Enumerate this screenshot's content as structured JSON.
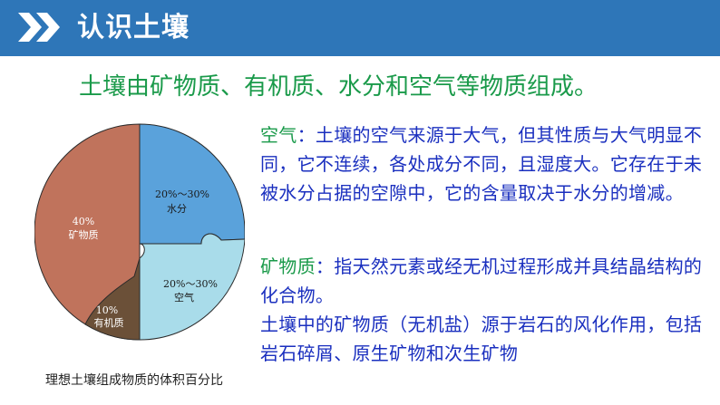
{
  "header": {
    "title": "认识土壤",
    "icon": "double-chevron-right-icon",
    "bg_color": "#2e76b8"
  },
  "intro": "土壤由矿物质、有机质、水分和空气等物质组成。",
  "chart_data": {
    "type": "pie",
    "title": "",
    "caption": "理想土壤组成物质的体积百分比",
    "slices": [
      {
        "pct": "40%",
        "name": "矿物质",
        "value": 40,
        "color": "#c0735c"
      },
      {
        "pct": "20%～30%",
        "name": "水分",
        "value": 25,
        "color": "#5aa2db"
      },
      {
        "pct": "20%～30%",
        "name": "空气",
        "value": 25,
        "color": "#a9dcea"
      },
      {
        "pct": "10%",
        "name": "有机质",
        "value": 10,
        "color": "#6b5038"
      }
    ]
  },
  "paragraphs": {
    "air": {
      "term": "空气",
      "text": "：土壤的空气来源于大气，但其性质与大气明显不同，它不连续，各处成分不同，且湿度大。它存在于未被水分占据的空隙中，它的含量取决于水分的增减。"
    },
    "mineral": {
      "term": "矿物质",
      "text": "：指天然元素或经无机过程形成并具结晶结构的化合物。"
    },
    "mineral_source": "土壤中的矿物质（无机盐）源于岩石的风化作用，包括岩石碎屑、原生矿物和次生矿物"
  }
}
